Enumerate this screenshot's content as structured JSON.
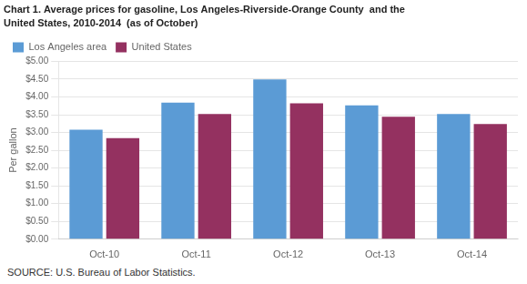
{
  "chart_data": {
    "type": "bar",
    "title": "Chart 1. Average prices for gasoline, Los Angeles-Riverside-Orange County  and the",
    "subtitle": "United States, 2010-2014  (as of October)",
    "ylabel": "Per gallon",
    "source": "SOURCE: U.S. Bureau of Labor Statistics.",
    "categories": [
      "Oct-10",
      "Oct-11",
      "Oct-12",
      "Oct-13",
      "Oct-14"
    ],
    "series": [
      {
        "name": "Los Angeles area",
        "color": "#5B9BD5",
        "values": [
          3.08,
          3.84,
          4.49,
          3.76,
          3.52
        ]
      },
      {
        "name": "United States",
        "color": "#943160",
        "values": [
          2.84,
          3.52,
          3.82,
          3.44,
          3.24
        ]
      }
    ],
    "ylim": [
      0,
      5.0
    ],
    "yticks": [
      {
        "value": 0.0,
        "label": "$0.00"
      },
      {
        "value": 0.5,
        "label": "$0.50"
      },
      {
        "value": 1.0,
        "label": "$1.00"
      },
      {
        "value": 1.5,
        "label": "$1.50"
      },
      {
        "value": 2.0,
        "label": "$2.00"
      },
      {
        "value": 2.5,
        "label": "$2.50"
      },
      {
        "value": 3.0,
        "label": "$3.00"
      },
      {
        "value": 3.5,
        "label": "$3.50"
      },
      {
        "value": 4.0,
        "label": "$4.00"
      },
      {
        "value": 4.5,
        "label": "$4.50"
      },
      {
        "value": 5.0,
        "label": "$5.00"
      }
    ],
    "grid": true,
    "legend": "upper left"
  }
}
